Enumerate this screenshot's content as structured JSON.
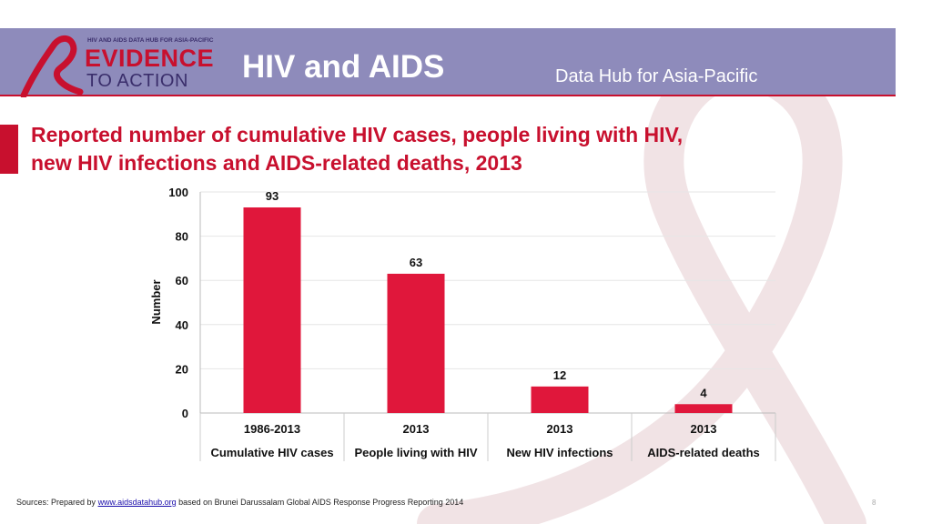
{
  "header": {
    "logo_top": "HIV AND AIDS DATA HUB FOR ASIA-PACIFIC",
    "logo_line1": "EVIDENCE",
    "logo_line2": "TO ACTION",
    "title": "HIV and AIDS",
    "subtitle": "Data Hub for Asia-Pacific"
  },
  "slide_title": {
    "line1": "Reported number of cumulative HIV cases, people living with HIV,",
    "line2": "new HIV infections and AIDS-related deaths, 2013"
  },
  "colors": {
    "brand_red": "#c8102e",
    "bar": "#e0173b",
    "header_bg": "#8e8bbb"
  },
  "chart_data": {
    "type": "bar",
    "title": "",
    "xlabel": "",
    "ylabel": "Number",
    "ylim": [
      0,
      100
    ],
    "yticks": [
      0,
      20,
      40,
      60,
      80,
      100
    ],
    "grid": true,
    "categories": [
      {
        "period": "1986-2013",
        "label": "Cumulative HIV cases"
      },
      {
        "period": "2013",
        "label": "People living with HIV"
      },
      {
        "period": "2013",
        "label": "New HIV infections"
      },
      {
        "period": "2013",
        "label": "AIDS-related deaths"
      }
    ],
    "values": [
      93,
      63,
      12,
      4
    ]
  },
  "footer": {
    "prefix": "Sources: Prepared by ",
    "link": "www.aidsdatahub.org",
    "suffix": " based on Brunei Darussalam Global AIDS Response Progress Reporting 2014"
  },
  "page_number": "8"
}
